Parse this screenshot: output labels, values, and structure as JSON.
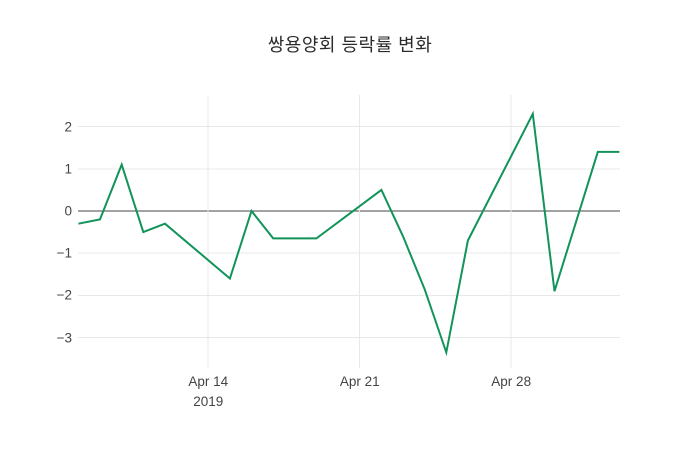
{
  "title": "쌍용양회 등락률 변화",
  "colors": {
    "background": "#ffffff",
    "line": "#12935a",
    "zero_line": "#444444",
    "grid": "#e8e8e8",
    "tick_text": "#444444",
    "title_text": "#2b2b2b"
  },
  "chart_data": {
    "type": "line",
    "title": "쌍용양회 등락률 변화",
    "xlabel": "",
    "ylabel": "",
    "grid": true,
    "legend_position": "none",
    "zero_line": true,
    "ylim": [
      -3.6,
      2.7
    ],
    "x": [
      "2019-04-08",
      "2019-04-09",
      "2019-04-10",
      "2019-04-11",
      "2019-04-12",
      "2019-04-15",
      "2019-04-16",
      "2019-04-17",
      "2019-04-18",
      "2019-04-19",
      "2019-04-22",
      "2019-04-23",
      "2019-04-24",
      "2019-04-25",
      "2019-04-26",
      "2019-04-29",
      "2019-04-30",
      "2019-05-02",
      "2019-05-03"
    ],
    "values": [
      -0.3,
      -0.2,
      1.1,
      -0.5,
      -0.3,
      -1.6,
      0.0,
      -0.65,
      -0.65,
      -0.65,
      0.5,
      -0.6,
      -1.85,
      -3.35,
      -0.7,
      2.3,
      -1.9,
      1.4,
      1.4
    ],
    "y_ticks": [
      {
        "label": "2",
        "value": 2
      },
      {
        "label": "1",
        "value": 1
      },
      {
        "label": "0",
        "value": 0
      },
      {
        "label": "−1",
        "value": -1
      },
      {
        "label": "−2",
        "value": -2
      },
      {
        "label": "−3",
        "value": -3
      }
    ],
    "x_ticks": [
      {
        "label": "Apr 14",
        "sublabel": "2019",
        "date": "2019-04-14"
      },
      {
        "label": "Apr 21",
        "sublabel": "",
        "date": "2019-04-21"
      },
      {
        "label": "Apr 28",
        "sublabel": "",
        "date": "2019-04-28"
      }
    ]
  }
}
